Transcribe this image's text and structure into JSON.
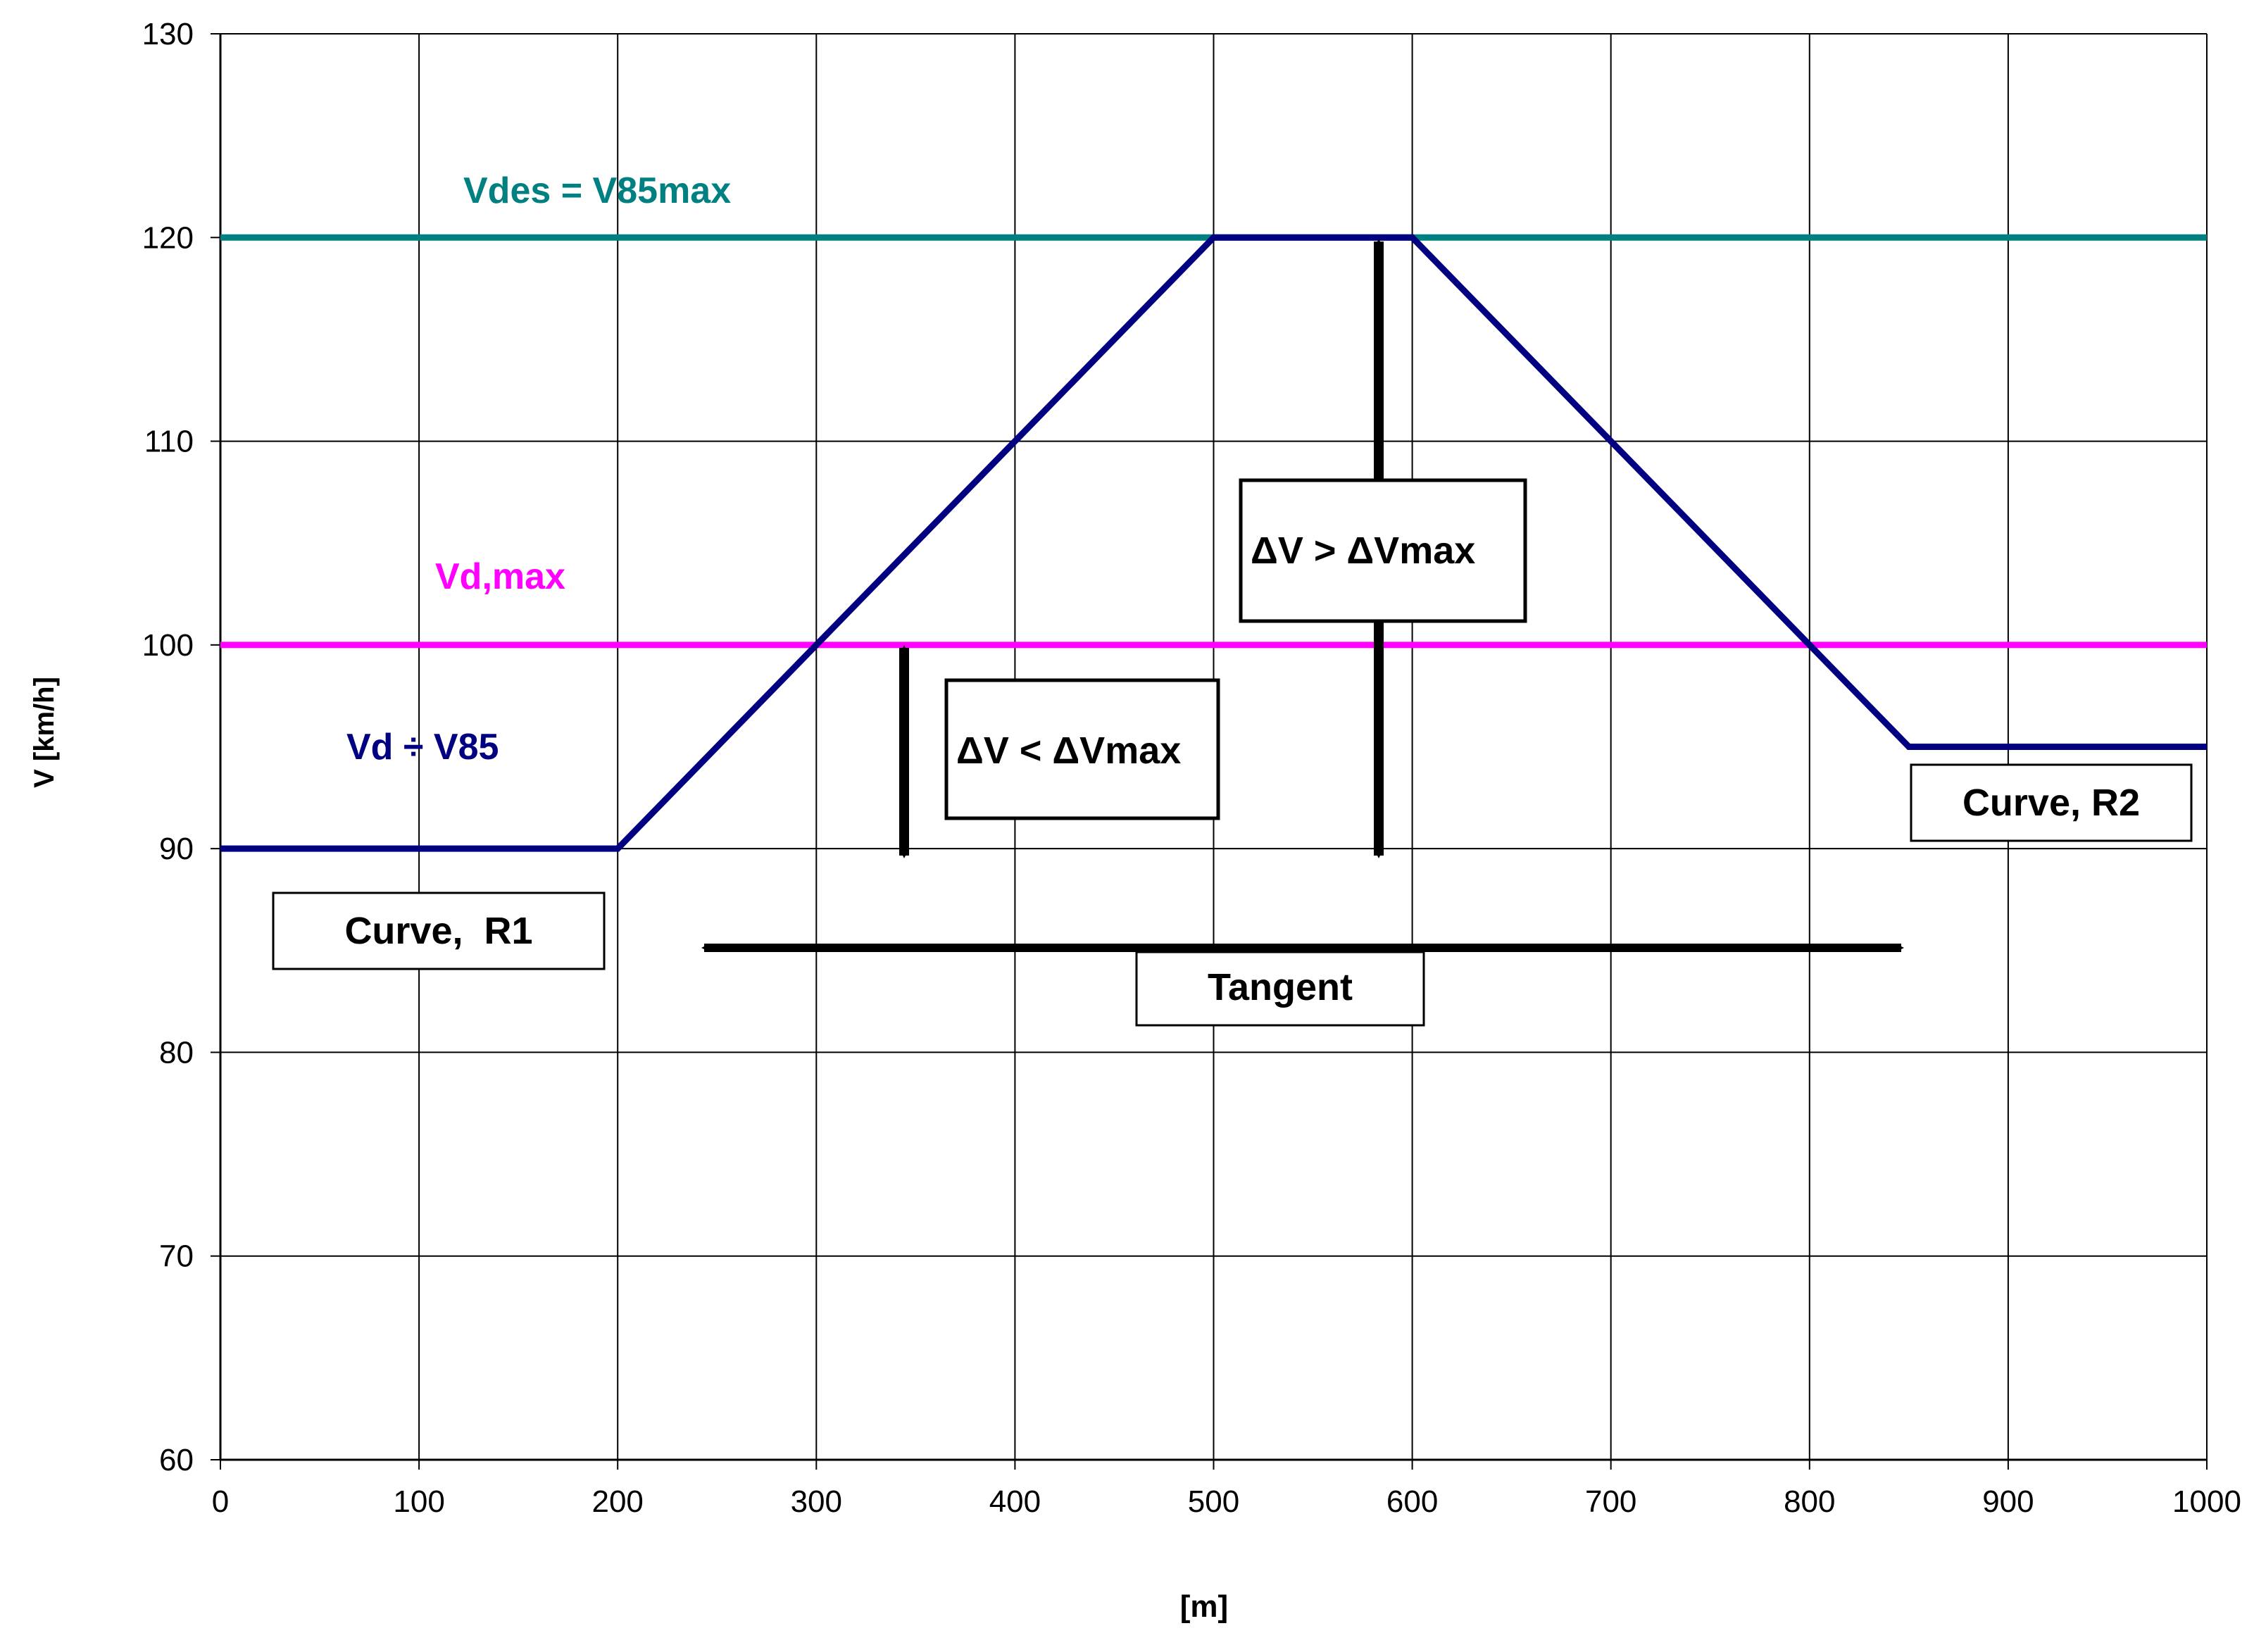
{
  "chart_data": {
    "type": "line",
    "xlabel": "[m]",
    "ylabel": "V [km/h]",
    "xlim": [
      0,
      1000
    ],
    "ylim": [
      60,
      130
    ],
    "x_ticks": [
      "0",
      "100",
      "200",
      "300",
      "400",
      "500",
      "600",
      "700",
      "800",
      "900",
      "1000"
    ],
    "y_ticks": [
      "60",
      "70",
      "80",
      "90",
      "100",
      "110",
      "120",
      "130"
    ],
    "grid": true,
    "series": [
      {
        "name": "Vdes = V85max",
        "color": "#008080",
        "points": [
          [
            0,
            120
          ],
          [
            1000,
            120
          ]
        ]
      },
      {
        "name": "Vd,max",
        "color": "#ff00ff",
        "points": [
          [
            0,
            100
          ],
          [
            1000,
            100
          ]
        ]
      },
      {
        "name": "Vd ÷ V85",
        "color": "#000080",
        "points": [
          [
            0,
            90
          ],
          [
            200,
            90
          ],
          [
            500,
            120
          ],
          [
            600,
            120
          ],
          [
            800,
            100
          ],
          [
            850,
            95
          ],
          [
            1000,
            95
          ]
        ]
      }
    ],
    "annotations": {
      "curve_r1": "Curve,  R1",
      "curve_r2": "Curve, R2",
      "tangent": "Tangent",
      "dv_less": "ΔV < ΔVmax",
      "dv_greater": "ΔV > ΔVmax"
    }
  }
}
